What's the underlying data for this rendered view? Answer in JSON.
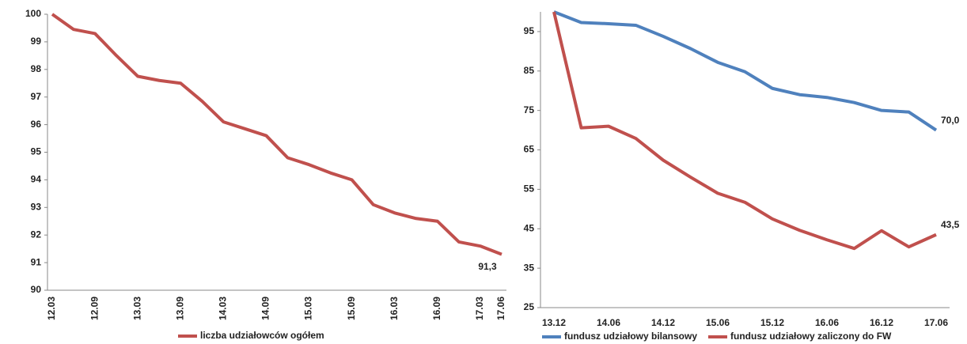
{
  "chart_data": [
    {
      "type": "line",
      "categories": [
        "12.03",
        null,
        "12.09",
        null,
        "13.03",
        null,
        "13.09",
        null,
        "14.03",
        null,
        "14.09",
        null,
        "15.03",
        null,
        "15.09",
        null,
        "16.03",
        null,
        "16.09",
        null,
        "17.03",
        "17.06"
      ],
      "series": [
        {
          "name": "liczba udziałowców ogółem",
          "color": "#c0504d",
          "values": [
            100,
            99.45,
            99.3,
            98.5,
            97.75,
            97.6,
            97.5,
            96.85,
            96.1,
            95.85,
            95.6,
            94.8,
            94.55,
            94.25,
            94.0,
            93.1,
            92.8,
            92.6,
            92.5,
            91.75,
            91.6,
            91.3
          ],
          "value_labels": [
            null,
            null,
            null,
            null,
            null,
            null,
            null,
            null,
            null,
            null,
            null,
            null,
            null,
            null,
            null,
            null,
            null,
            null,
            null,
            null,
            null,
            "91,3"
          ]
        }
      ],
      "ylim": [
        90,
        100
      ],
      "yticks": [
        90,
        91,
        92,
        93,
        94,
        95,
        96,
        97,
        98,
        99,
        100
      ]
    },
    {
      "type": "line",
      "categories": [
        "13.12",
        null,
        "14.06",
        null,
        "14.12",
        null,
        "15.06",
        null,
        "15.12",
        null,
        "16.06",
        null,
        "16.12",
        null,
        "17.06"
      ],
      "series": [
        {
          "name": "fundusz udziałowy bilansowy",
          "color": "#4f81bd",
          "values": [
            100,
            97.3,
            97.0,
            96.6,
            93.8,
            90.7,
            87.2,
            84.8,
            80.6,
            79.0,
            78.3,
            77.0,
            75.0,
            74.6,
            70.0
          ],
          "value_labels": [
            null,
            null,
            null,
            null,
            null,
            null,
            null,
            null,
            null,
            null,
            null,
            null,
            null,
            null,
            "70,0"
          ]
        },
        {
          "name": "fundusz udziałowy zaliczony do FW",
          "color": "#c0504d",
          "values": [
            100,
            70.6,
            71.0,
            67.9,
            62.4,
            58.1,
            54.0,
            51.7,
            47.5,
            44.6,
            42.2,
            40.0,
            44.5,
            40.4,
            43.5
          ],
          "value_labels": [
            null,
            null,
            null,
            null,
            null,
            null,
            null,
            null,
            null,
            null,
            null,
            null,
            null,
            null,
            "43,5"
          ]
        }
      ],
      "ylim": [
        25,
        100
      ],
      "yticks": [
        25,
        35,
        45,
        55,
        65,
        75,
        85,
        95
      ]
    }
  ]
}
